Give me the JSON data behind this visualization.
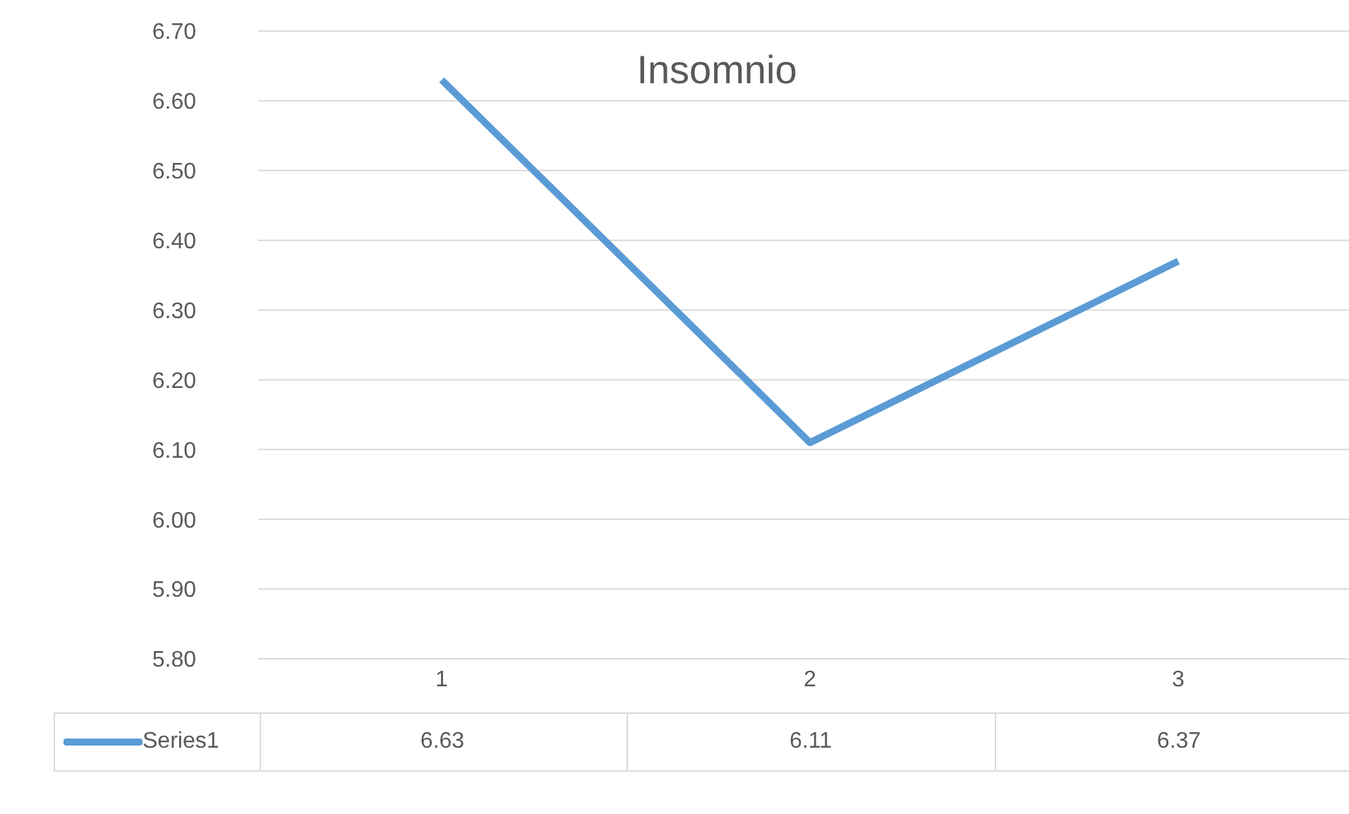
{
  "chart_data": {
    "type": "line",
    "title": "Insomnio",
    "categories": [
      "1",
      "2",
      "3"
    ],
    "series": [
      {
        "name": "Series1",
        "color": "#5b9bd5",
        "values": [
          6.63,
          6.11,
          6.37
        ]
      }
    ],
    "ylim": [
      5.8,
      6.7
    ],
    "yticks": [
      {
        "value": 5.8,
        "label": "5.80"
      },
      {
        "value": 5.9,
        "label": "5.90"
      },
      {
        "value": 6.0,
        "label": "6.00"
      },
      {
        "value": 6.1,
        "label": "6.10"
      },
      {
        "value": 6.2,
        "label": "6.20"
      },
      {
        "value": 6.3,
        "label": "6.30"
      },
      {
        "value": 6.4,
        "label": "6.40"
      },
      {
        "value": 6.5,
        "label": "6.50"
      },
      {
        "value": 6.6,
        "label": "6.60"
      },
      {
        "value": 6.7,
        "label": "6.70"
      }
    ],
    "grid": "y",
    "legend": "bottom",
    "data_labels": true,
    "marker": "none",
    "line_style": "solid"
  }
}
